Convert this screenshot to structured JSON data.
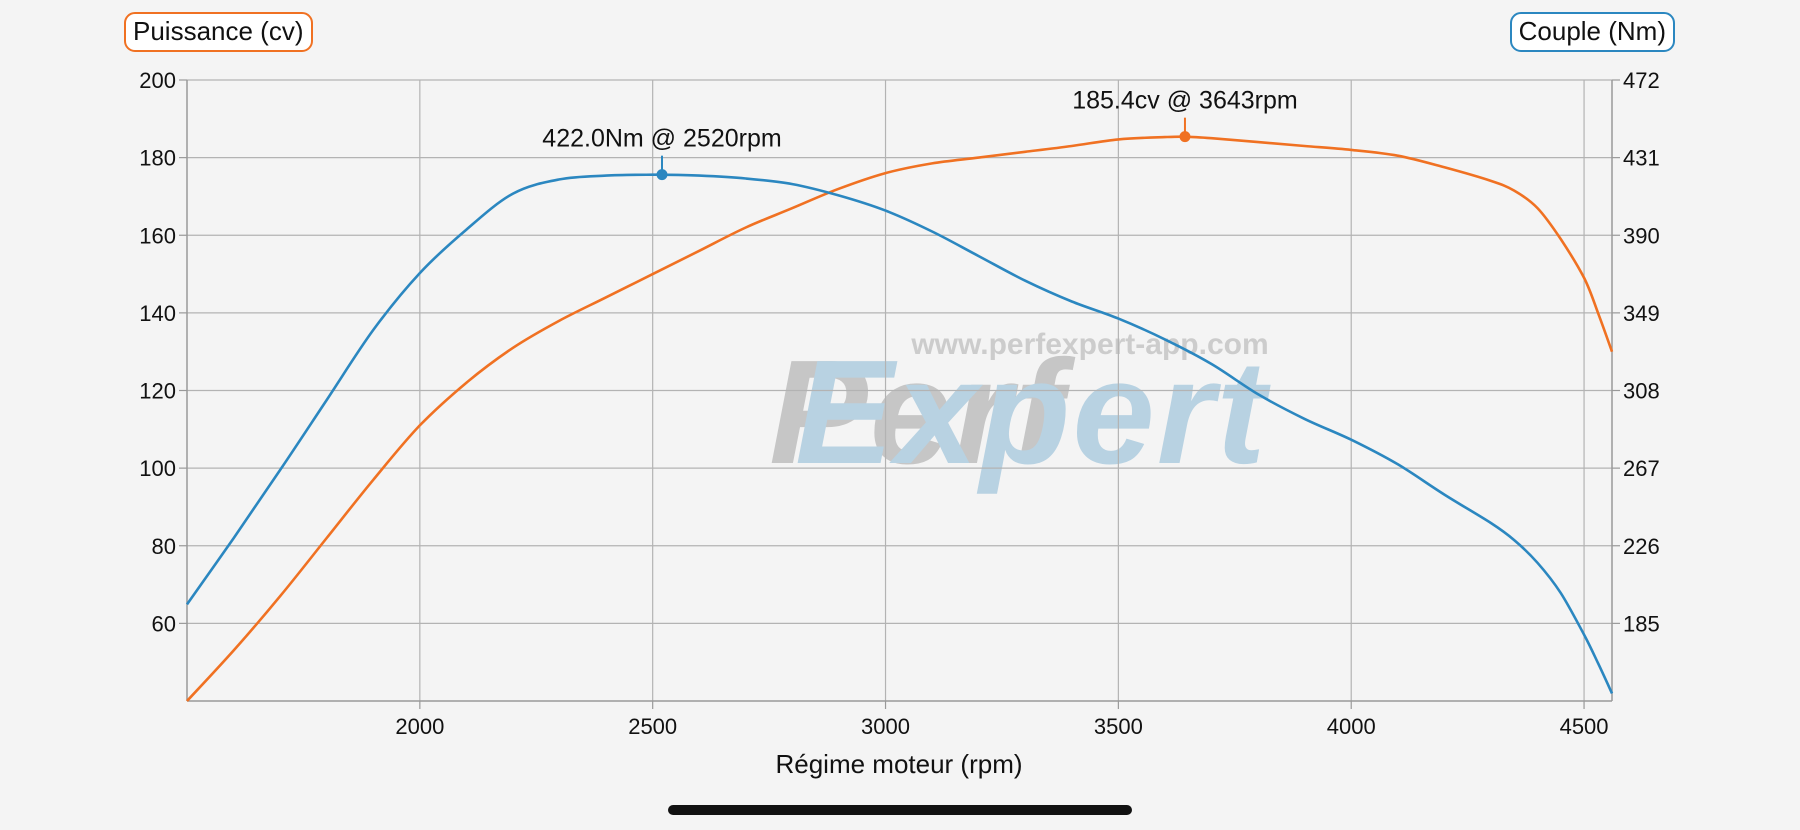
{
  "chart_data": {
    "type": "line",
    "xlabel": "Régime moteur (rpm)",
    "xlim": [
      1500,
      4560
    ],
    "x_ticks": [
      2000,
      2500,
      3000,
      3500,
      4000,
      4500
    ],
    "y_left": {
      "label": "Puissance (cv)",
      "lim": [
        40,
        200
      ],
      "ticks": [
        60,
        80,
        100,
        120,
        140,
        160,
        180,
        200
      ]
    },
    "y_right": {
      "label": "Couple (Nm)",
      "lim": [
        144,
        472
      ],
      "ticks": [
        185,
        226,
        267,
        308,
        349,
        390,
        431,
        472
      ]
    },
    "grid": true,
    "series": [
      {
        "name": "Puissance (cv)",
        "axis": "left",
        "color": "#f07122",
        "x": [
          1500,
          1600,
          1700,
          1800,
          1900,
          2000,
          2100,
          2200,
          2300,
          2400,
          2500,
          2600,
          2700,
          2800,
          2900,
          3000,
          3100,
          3200,
          3300,
          3400,
          3500,
          3600,
          3643,
          3700,
          3800,
          3900,
          4000,
          4100,
          4200,
          4300,
          4350,
          4400,
          4450,
          4500,
          4530,
          4560
        ],
        "values": [
          40,
          53,
          67,
          82,
          97,
          111,
          122,
          131,
          138,
          144,
          150,
          156,
          162,
          167,
          172,
          176,
          178.5,
          180,
          181.5,
          183,
          184.7,
          185.3,
          185.4,
          185,
          184,
          183,
          182,
          180.5,
          177.5,
          174,
          171.5,
          167,
          159,
          149,
          140,
          130
        ]
      },
      {
        "name": "Couple (Nm)",
        "axis": "right",
        "color": "#2b87c0",
        "x": [
          1500,
          1600,
          1700,
          1800,
          1900,
          2000,
          2100,
          2200,
          2300,
          2400,
          2500,
          2520,
          2600,
          2700,
          2800,
          2900,
          3000,
          3100,
          3200,
          3300,
          3400,
          3500,
          3600,
          3700,
          3800,
          3900,
          4000,
          4100,
          4200,
          4300,
          4350,
          4400,
          4450,
          4500,
          4530,
          4560
        ],
        "values": [
          195,
          230,
          266,
          303,
          340,
          370,
          393,
          412,
          419.5,
          421.5,
          422,
          422,
          421.5,
          420,
          417,
          411,
          403,
          392,
          379,
          366,
          355,
          346,
          335,
          322,
          306,
          293,
          282,
          269,
          253,
          238,
          229,
          217,
          201,
          179,
          164,
          148
        ]
      }
    ],
    "annotations": [
      {
        "series": "Couple (Nm)",
        "x": 2520,
        "y": 422.0,
        "text": "422.0Nm @ 2520rpm"
      },
      {
        "series": "Puissance (cv)",
        "x": 3643,
        "y": 185.4,
        "text": "185.4cv @ 3643rpm"
      }
    ],
    "watermark": {
      "url": "www.perfexpert-app.com",
      "logo_part1": "Perf",
      "logo_part2": "Expert"
    }
  }
}
